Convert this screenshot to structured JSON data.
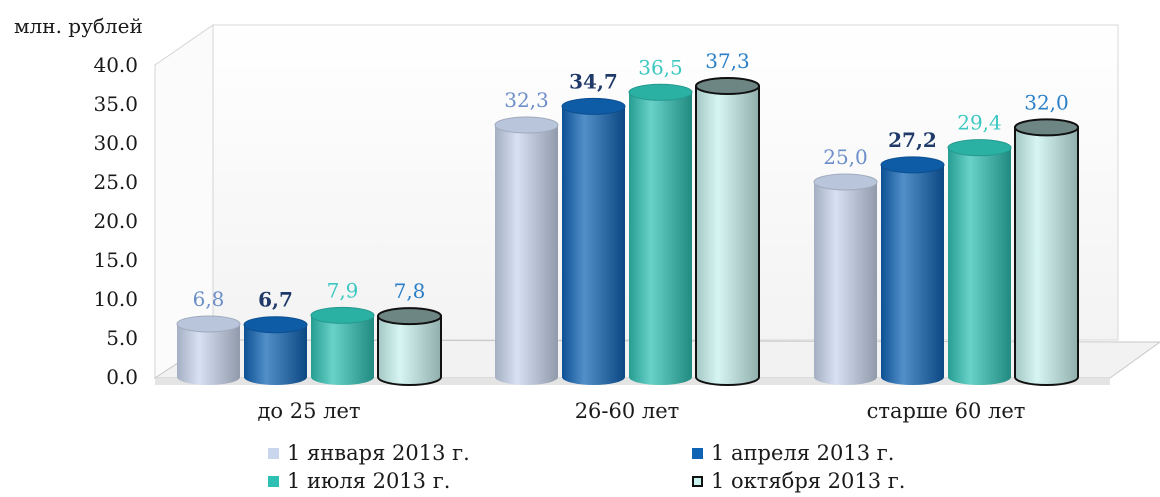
{
  "chart_data": {
    "type": "bar",
    "unit_label": "млн. рублей",
    "categories": [
      "до 25 лет",
      "26-60 лет",
      "старше 60 лет"
    ],
    "y_ticks": [
      "0.0",
      "5.0",
      "10.0",
      "15.0",
      "20.0",
      "25.0",
      "30.0",
      "35.0",
      "40.0"
    ],
    "ylim": [
      0,
      40
    ],
    "grid": false,
    "legend_position": "bottom",
    "series": [
      {
        "name": "1 января 2013 г.",
        "values": [
          6.8,
          32.3,
          25.0
        ],
        "labels": [
          "6,8",
          "32,3",
          "25,0"
        ],
        "color": "#c9d6ee",
        "label_color": "#6c8ec9"
      },
      {
        "name": "1 апреля 2013 г.",
        "values": [
          6.7,
          34.7,
          27.2
        ],
        "labels": [
          "6,7",
          "34,7",
          "27,2"
        ],
        "color": "#0f63b4",
        "label_color": "#1f3a68"
      },
      {
        "name": "1  июля 2013 г.",
        "values": [
          7.9,
          36.5,
          29.4
        ],
        "labels": [
          "7,9",
          "36,5",
          "29,4"
        ],
        "color": "#2ec0b2",
        "label_color": "#3cc8c0"
      },
      {
        "name": "1 октября 2013 г.",
        "values": [
          7.8,
          37.3,
          32.0
        ],
        "labels": [
          "7,8",
          "37,3",
          "32,0"
        ],
        "color": "#c8f3ef",
        "label_color": "#2a7fc8"
      }
    ]
  }
}
